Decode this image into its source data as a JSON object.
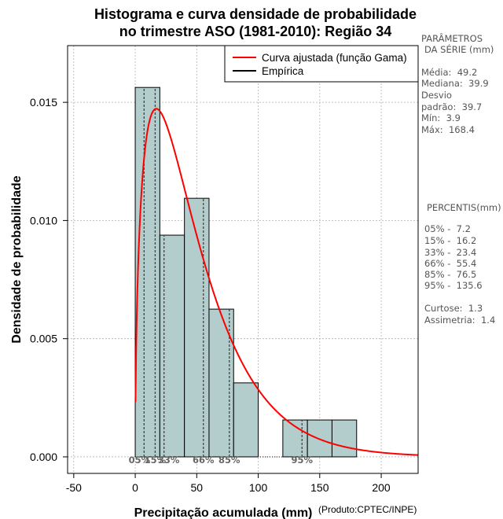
{
  "chart_data": {
    "type": "bar",
    "title_line1": "Histograma e curva densidade de probabilidade",
    "title_line2": "no trimestre ASO (1981-2010): Região 34",
    "xlabel": "Precipitação acumulada (mm)",
    "ylabel": "Densidade de probabilidade",
    "credit": "(Produto:CPTEC/INPE)",
    "xlim": [
      -55,
      230
    ],
    "ylim": [
      -0.0007,
      0.0174
    ],
    "x_ticks": [
      -50,
      0,
      50,
      100,
      150,
      200
    ],
    "x_tick_labels": [
      "-50",
      "0",
      "50",
      "100",
      "150",
      "200"
    ],
    "y_ticks": [
      0.0,
      0.005,
      0.01,
      0.015
    ],
    "y_tick_labels": [
      "0.000",
      "0.005",
      "0.010",
      "0.015"
    ],
    "grid": true,
    "histogram": [
      {
        "bin_start": 0,
        "bin_end": 20,
        "density": 0.01563
      },
      {
        "bin_start": 20,
        "bin_end": 40,
        "density": 0.00938
      },
      {
        "bin_start": 40,
        "bin_end": 60,
        "density": 0.01094
      },
      {
        "bin_start": 60,
        "bin_end": 80,
        "density": 0.00625
      },
      {
        "bin_start": 80,
        "bin_end": 100,
        "density": 0.00313
      },
      {
        "bin_start": 100,
        "bin_end": 120,
        "density": 0.0
      },
      {
        "bin_start": 120,
        "bin_end": 140,
        "density": 0.00156
      },
      {
        "bin_start": 140,
        "bin_end": 160,
        "density": 0.00156
      },
      {
        "bin_start": 160,
        "bin_end": 180,
        "density": 0.00156
      }
    ],
    "gamma_fit": {
      "name": "Curva ajustada (função Gama)",
      "shape": 1.534,
      "scale": 32.07,
      "color": "#ff0000"
    },
    "empirical": {
      "name": "Empírica",
      "color": "#000000"
    },
    "percentile_markers": [
      {
        "label": "05%",
        "x": 7.2
      },
      {
        "label": "15%",
        "x": 16.2
      },
      {
        "label": "33%",
        "x": 23.4
      },
      {
        "label": "66%",
        "x": 55.4
      },
      {
        "label": "85%",
        "x": 76.5
      },
      {
        "label": "95%",
        "x": 135.6
      }
    ],
    "bar_fill": "#b3cccc",
    "legend_position": "top-right"
  },
  "parametros": {
    "heading1": "PARÂMETROS",
    "heading2": "DA SÉRIE (mm)",
    "media": "Média:  49.2",
    "mediana": "Mediana:  39.9",
    "desvio1": "Desvio",
    "desvio2": "padrão:  39.7",
    "min": "Mín:  3.9",
    "max": "Máx:  168.4"
  },
  "percentis": {
    "heading": "PERCENTIS(mm)",
    "p05": "05% -  7.2",
    "p15": "15% -  16.2",
    "p33": "33% -  23.4",
    "p66": "66% -  55.4",
    "p85": "85% -  76.5",
    "p95": "95% -  135.6",
    "curtose": "Curtose:  1.3",
    "assimetria": "Assimetria:  1.4"
  }
}
